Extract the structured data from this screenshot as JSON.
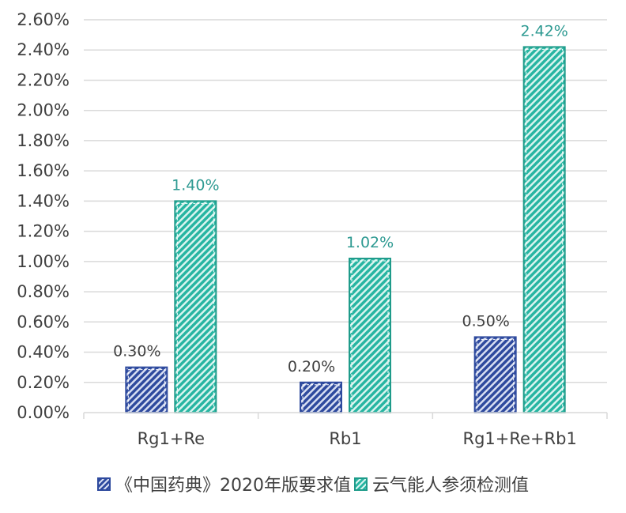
{
  "chart_data": {
    "type": "bar",
    "title": "",
    "xlabel": "",
    "ylabel": "",
    "categories": [
      "Rg1+Re",
      "Rb1",
      "Rg1+Re+Rb1"
    ],
    "series": [
      {
        "name": "《中国药典》2020年版要求值",
        "values": [
          0.3,
          0.2,
          0.5
        ],
        "labels": [
          "0.30%",
          "0.20%",
          "0.50%"
        ],
        "color": "#2e4a9e"
      },
      {
        "name": "云气能人参须检测值",
        "values": [
          1.4,
          1.02,
          2.42
        ],
        "labels": [
          "1.40%",
          "1.02%",
          "2.42%"
        ],
        "color": "#27b5a2"
      }
    ],
    "ylim": [
      0,
      2.6
    ],
    "yticks": [
      "0.00%",
      "0.20%",
      "0.40%",
      "0.60%",
      "0.80%",
      "1.00%",
      "1.20%",
      "1.40%",
      "1.60%",
      "1.80%",
      "2.00%",
      "2.20%",
      "2.40%",
      "2.60%"
    ],
    "grid": true,
    "legend_position": "bottom",
    "value_unit": "%"
  },
  "legend": {
    "items": [
      {
        "label": "《中国药典》2020年版要求值"
      },
      {
        "label": "云气能人参须检测值"
      }
    ]
  }
}
